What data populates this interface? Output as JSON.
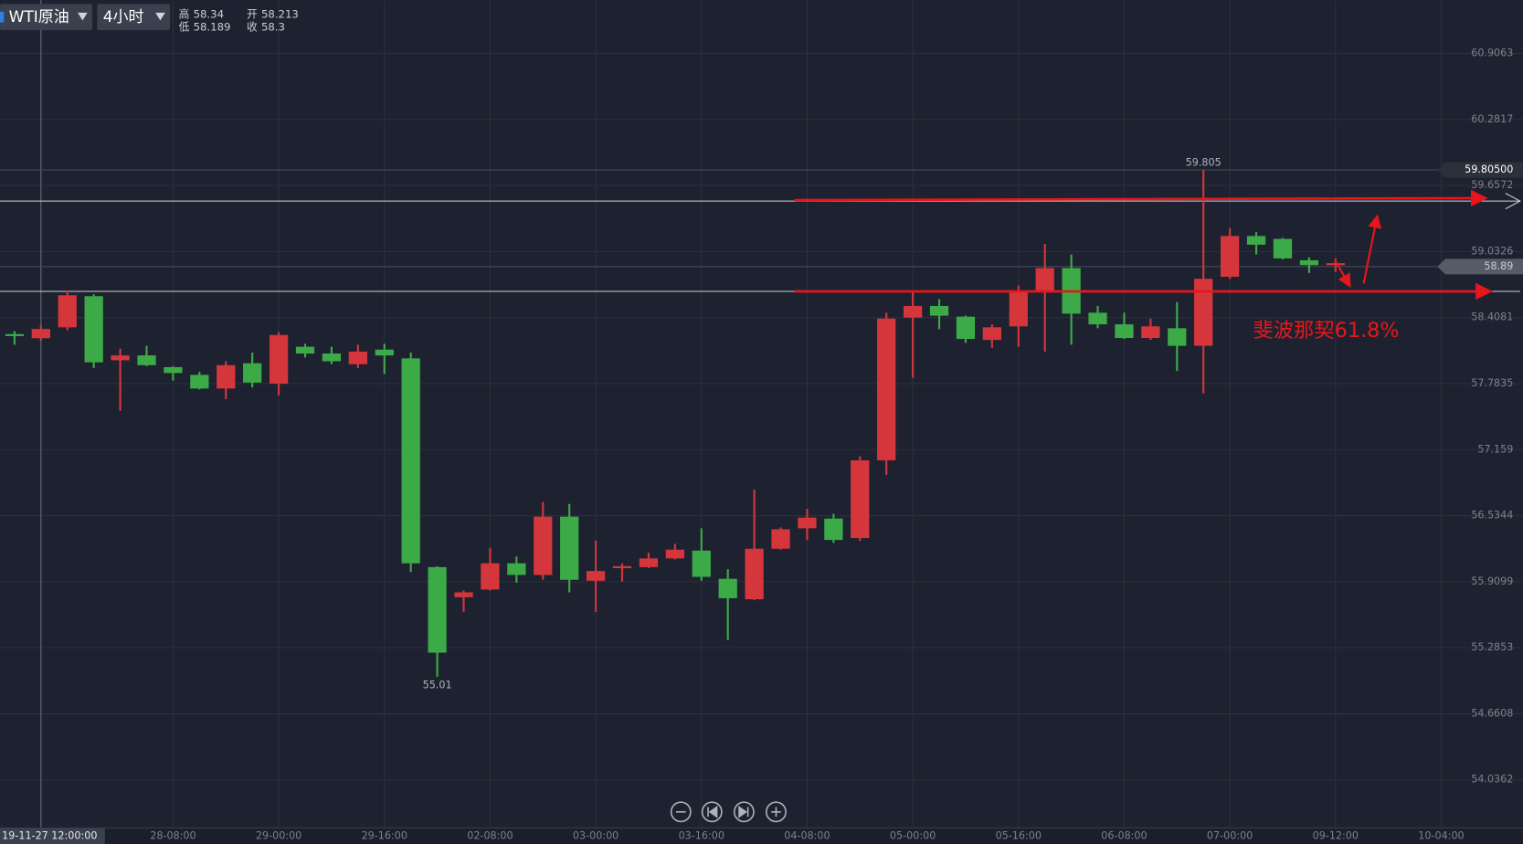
{
  "chart_data": {
    "type": "candlestick",
    "symbol": "WTI原油",
    "period": "4小时",
    "crosshair": {
      "index": 1,
      "label": "19-11-27 12:00:00",
      "high_label": "高",
      "high": 58.34,
      "open_label": "开",
      "open": 58.213,
      "low_label": "低",
      "low": 58.189,
      "close_label": "收",
      "close": 58.3
    },
    "up_color": "#d5363c",
    "down_color": "#3cab47",
    "open": [
      58.252,
      58.213,
      58.316,
      58.61,
      58.004,
      58.05,
      57.939,
      57.866,
      57.737,
      57.976,
      57.783,
      58.132,
      58.068,
      57.967,
      58.105,
      58.022,
      56.048,
      55.763,
      55.836,
      56.084,
      55.974,
      56.525,
      55.919,
      56.038,
      56.048,
      56.13,
      56.204,
      55.937,
      55.744,
      56.222,
      56.415,
      56.507,
      56.323,
      57.058,
      58.408,
      58.518,
      58.417,
      58.197,
      58.325,
      58.656,
      58.876,
      58.454,
      58.344,
      58.215,
      58.307,
      58.141,
      58.794,
      59.179,
      59.152,
      58.95,
      58.904
    ],
    "high": [
      58.279,
      58.34,
      58.665,
      58.628,
      58.114,
      58.141,
      57.949,
      57.894,
      57.995,
      58.077,
      58.27,
      58.16,
      58.132,
      58.151,
      58.16,
      58.077,
      56.057,
      55.827,
      56.231,
      56.149,
      56.663,
      56.645,
      56.296,
      56.084,
      56.185,
      56.268,
      56.415,
      56.029,
      56.782,
      56.424,
      56.599,
      56.553,
      57.095,
      58.454,
      58.656,
      58.582,
      58.426,
      58.344,
      58.711,
      59.106,
      59.005,
      58.518,
      58.454,
      58.399,
      58.555,
      59.805,
      59.253,
      59.216,
      59.161,
      58.977,
      58.968
    ],
    "low": [
      58.151,
      58.189,
      58.288,
      57.93,
      57.526,
      57.949,
      57.811,
      57.728,
      57.636,
      57.747,
      57.673,
      58.031,
      57.967,
      57.93,
      57.875,
      56.002,
      55.01,
      55.625,
      55.827,
      55.901,
      55.928,
      55.809,
      55.625,
      55.91,
      56.038,
      56.121,
      55.919,
      55.359,
      55.735,
      56.213,
      56.305,
      56.277,
      56.296,
      56.92,
      57.838,
      58.298,
      58.169,
      58.123,
      58.132,
      58.086,
      58.151,
      58.307,
      58.206,
      58.197,
      57.903,
      57.691,
      58.775,
      59.005,
      58.959,
      58.83,
      58.839
    ],
    "close": [
      58.233,
      58.3,
      58.619,
      57.985,
      58.05,
      57.958,
      57.884,
      57.737,
      57.958,
      57.793,
      58.243,
      58.068,
      57.995,
      58.086,
      58.05,
      56.084,
      55.239,
      55.809,
      56.084,
      55.974,
      56.525,
      55.928,
      56.011,
      56.057,
      56.13,
      56.213,
      55.956,
      55.754,
      56.222,
      56.406,
      56.516,
      56.305,
      57.058,
      58.399,
      58.518,
      58.426,
      58.206,
      58.316,
      58.656,
      58.876,
      58.445,
      58.344,
      58.215,
      58.325,
      58.141,
      58.775,
      59.179,
      59.097,
      58.968,
      58.904,
      58.922
    ],
    "xlim": [
      -0.55,
      54.78
    ],
    "xticks": [
      {
        "value": 6,
        "label": "28-08:00"
      },
      {
        "value": 10,
        "label": "29-00:00"
      },
      {
        "value": 14,
        "label": "29-16:00"
      },
      {
        "value": 18,
        "label": "02-08:00"
      },
      {
        "value": 22,
        "label": "03-00:00"
      },
      {
        "value": 26,
        "label": "03-16:00"
      },
      {
        "value": 30,
        "label": "04-08:00"
      },
      {
        "value": 34,
        "label": "05-00:00"
      },
      {
        "value": 38,
        "label": "05-16:00"
      },
      {
        "value": 42,
        "label": "06-08:00"
      },
      {
        "value": 46,
        "label": "07-00:00"
      },
      {
        "value": 50,
        "label": "09-12:00"
      },
      {
        "value": 54,
        "label": "10-04:00"
      }
    ],
    "ylim": [
      53.586,
      61.411
    ],
    "yticks": [
      60.9063,
      60.2817,
      59.6572,
      59.0326,
      58.4081,
      57.7835,
      57.159,
      56.5344,
      55.9099,
      55.2853,
      54.6608,
      54.0362
    ],
    "grid": true,
    "hlines": [
      {
        "value": 59.51,
        "color": "#cfd2d8"
      },
      {
        "value": 58.656,
        "color": "#cfd2d8"
      }
    ],
    "price_tags": [
      {
        "value": 59.805,
        "label": "59.80500"
      },
      {
        "value": 58.89,
        "label": "58.89"
      }
    ],
    "annotation": "斐波那契61.8%"
  }
}
